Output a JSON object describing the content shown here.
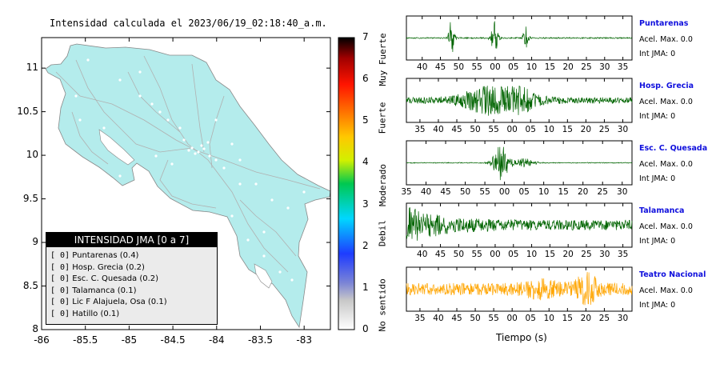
{
  "map": {
    "title": "Intensidad calculada el 2023/06/19_02:18:40_a.m.",
    "x_ticks": [
      "-86",
      "-85.5",
      "-85",
      "-84.5",
      "-84",
      "-83.5",
      "-83"
    ],
    "y_ticks": [
      "11",
      "10.5",
      "10",
      "9.5",
      "9",
      "8.5",
      "8"
    ],
    "xlim": [
      -86,
      -82.7
    ],
    "ylim": [
      8,
      11.35
    ],
    "land_color": "#b4ecec"
  },
  "colorbar": {
    "ticks": [
      "0",
      "1",
      "2",
      "3",
      "4",
      "5",
      "6",
      "7"
    ],
    "labels": [
      "No sentido",
      "Debil",
      "Moderado",
      "Fuerte",
      "Muy Fuerte"
    ]
  },
  "legend": {
    "title": "INTENSIDAD JMA [0 a 7]",
    "items": [
      {
        "bracket": "[ 0]",
        "station": "Puntarenas (0.4)"
      },
      {
        "bracket": "[ 0]",
        "station": "Hosp. Grecia (0.2)"
      },
      {
        "bracket": "[ 0]",
        "station": "Esc. C. Quesada (0.2)"
      },
      {
        "bracket": "[ 0]",
        "station": "Talamanca (0.1)"
      },
      {
        "bracket": "[ 0]",
        "station": "Lic F Alajuela, Osa (0.1)"
      },
      {
        "bracket": "[ 0]",
        "station": "Hatillo (0.1)"
      }
    ]
  },
  "seismograms": [
    {
      "name": "Puntarenas",
      "acel": "Acel. Max. 0.0",
      "jma": "Int JMA: 0",
      "color": "#006400",
      "ticks": [
        "40",
        "45",
        "50",
        "55",
        "00",
        "05",
        "10",
        "15",
        "20",
        "25",
        "30",
        "35"
      ]
    },
    {
      "name": "Hosp. Grecia",
      "acel": "Acel. Max. 0.0",
      "jma": "Int JMA: 0",
      "color": "#006400",
      "ticks": [
        "35",
        "40",
        "45",
        "50",
        "55",
        "00",
        "05",
        "10",
        "15",
        "20",
        "25",
        "30"
      ]
    },
    {
      "name": "Esc. C. Quesada",
      "acel": "Acel. Max. 0.0",
      "jma": "Int JMA: 0",
      "color": "#006400",
      "ticks": [
        "35",
        "40",
        "45",
        "50",
        "55",
        "00",
        "05",
        "10",
        "15",
        "20",
        "25",
        "30"
      ]
    },
    {
      "name": "Talamanca",
      "acel": "Acel. Max. 0.0",
      "jma": "Int JMA: 0",
      "color": "#006400",
      "ticks": [
        "40",
        "45",
        "50",
        "55",
        "00",
        "05",
        "10",
        "15",
        "20",
        "25",
        "30",
        "35"
      ]
    },
    {
      "name": "Teatro Nacional",
      "acel": "Acel. Max. 0.0",
      "jma": "Int JMA: 0",
      "color": "#ffa500",
      "ticks": [
        "35",
        "40",
        "45",
        "50",
        "55",
        "00",
        "05",
        "10",
        "15",
        "20",
        "25",
        "30"
      ]
    }
  ],
  "xlabel": "Tiempo (s)"
}
